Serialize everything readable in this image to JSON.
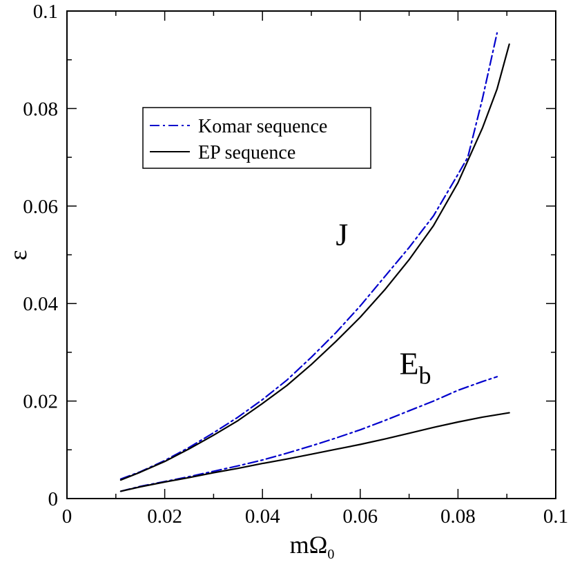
{
  "chart_data": {
    "type": "line",
    "title": "",
    "xlabel": {
      "main": "mΩ",
      "sub": "0"
    },
    "ylabel": "ε",
    "xlim": [
      0,
      0.1
    ],
    "ylim": [
      0,
      0.1
    ],
    "grid": false,
    "legend_position": "upper-left",
    "x_ticks": [
      {
        "value": 0,
        "label": "0"
      },
      {
        "value": 0.02,
        "label": "0.02"
      },
      {
        "value": 0.04,
        "label": "0.04"
      },
      {
        "value": 0.06,
        "label": "0.06"
      },
      {
        "value": 0.08,
        "label": "0.08"
      },
      {
        "value": 0.1,
        "label": "0.1"
      }
    ],
    "y_ticks": [
      {
        "value": 0,
        "label": "0"
      },
      {
        "value": 0.02,
        "label": "0.02"
      },
      {
        "value": 0.04,
        "label": "0.04"
      },
      {
        "value": 0.06,
        "label": "0.06"
      },
      {
        "value": 0.08,
        "label": "0.08"
      },
      {
        "value": 0.1,
        "label": "0.1"
      }
    ],
    "legend": [
      {
        "name": "Komar sequence",
        "color": "#0000cc",
        "style": "dashdot"
      },
      {
        "name": "EP sequence",
        "color": "#000000",
        "style": "solid"
      }
    ],
    "annotations": [
      {
        "text": "J",
        "sub": "",
        "x": 0.055,
        "y": 0.052
      },
      {
        "text": "E",
        "sub": "b",
        "x": 0.068,
        "y": 0.0255
      }
    ],
    "series": [
      {
        "name": "Komar sequence",
        "group": "J",
        "color": "#0000cc",
        "style": "dashdot",
        "x": [
          0.011,
          0.015,
          0.02,
          0.025,
          0.03,
          0.035,
          0.04,
          0.045,
          0.05,
          0.055,
          0.06,
          0.065,
          0.07,
          0.075,
          0.08,
          0.082,
          0.085,
          0.088
        ],
        "y": [
          0.004,
          0.0055,
          0.0078,
          0.0105,
          0.0135,
          0.0167,
          0.0203,
          0.0243,
          0.029,
          0.034,
          0.0395,
          0.0455,
          0.0515,
          0.058,
          0.0665,
          0.07,
          0.082,
          0.0955
        ]
      },
      {
        "name": "EP sequence",
        "group": "J",
        "color": "#000000",
        "style": "solid",
        "x": [
          0.011,
          0.015,
          0.02,
          0.025,
          0.03,
          0.035,
          0.04,
          0.045,
          0.05,
          0.055,
          0.06,
          0.065,
          0.07,
          0.075,
          0.08,
          0.085,
          0.088,
          0.0905
        ],
        "y": [
          0.0038,
          0.0054,
          0.0076,
          0.0102,
          0.013,
          0.016,
          0.0195,
          0.0232,
          0.0275,
          0.0322,
          0.0372,
          0.0428,
          0.049,
          0.056,
          0.0648,
          0.076,
          0.084,
          0.0932
        ]
      },
      {
        "name": "Komar sequence",
        "group": "Eb",
        "color": "#0000cc",
        "style": "dashdot",
        "x": [
          0.011,
          0.015,
          0.02,
          0.025,
          0.03,
          0.035,
          0.04,
          0.045,
          0.05,
          0.055,
          0.06,
          0.065,
          0.07,
          0.075,
          0.08,
          0.085,
          0.088
        ],
        "y": [
          0.0015,
          0.0025,
          0.0035,
          0.0045,
          0.0056,
          0.0067,
          0.0079,
          0.0093,
          0.0108,
          0.0124,
          0.0141,
          0.016,
          0.018,
          0.02,
          0.0222,
          0.024,
          0.025
        ]
      },
      {
        "name": "EP sequence",
        "group": "Eb",
        "color": "#000000",
        "style": "solid",
        "x": [
          0.011,
          0.015,
          0.02,
          0.025,
          0.03,
          0.035,
          0.04,
          0.045,
          0.05,
          0.055,
          0.06,
          0.065,
          0.07,
          0.075,
          0.08,
          0.085,
          0.0905
        ],
        "y": [
          0.0015,
          0.0024,
          0.0034,
          0.0043,
          0.0053,
          0.0062,
          0.0072,
          0.0081,
          0.0091,
          0.0101,
          0.0111,
          0.0122,
          0.0134,
          0.0146,
          0.0157,
          0.0167,
          0.0176
        ]
      }
    ]
  }
}
